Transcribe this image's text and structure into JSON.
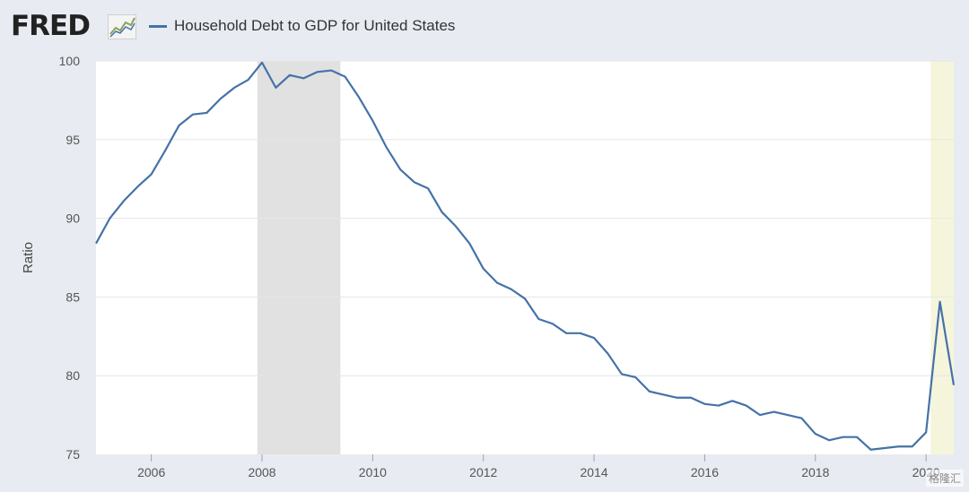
{
  "header": {
    "logo_text": "FRED",
    "logo_icon": "line-chart-icon"
  },
  "colors": {
    "series": "#4572a7",
    "recession": "#e1e1e1",
    "highlight": "#f5f5dc",
    "grid": "#e6e6e6",
    "plot_bg": "#ffffff"
  },
  "watermark": "格隆汇",
  "chart_data": {
    "type": "line",
    "title": "",
    "xlabel": "",
    "ylabel": "Ratio",
    "xlim": [
      "2005-01-01",
      "2020-07-01"
    ],
    "ylim": [
      75,
      100
    ],
    "x_ticks": [
      "2006",
      "2008",
      "2010",
      "2012",
      "2014",
      "2016",
      "2018",
      "2020"
    ],
    "y_ticks": [
      75,
      80,
      85,
      90,
      95,
      100
    ],
    "grid": true,
    "legend": "top-left",
    "shaded_periods": [
      {
        "start": "2007-12-01",
        "end": "2009-06-01",
        "kind": "recession"
      },
      {
        "start": "2020-02-01",
        "end": "2020-07-01",
        "kind": "highlight"
      }
    ],
    "series": [
      {
        "name": "Household Debt to GDP for United States",
        "x": [
          "2005-01-01",
          "2005-04-01",
          "2005-07-01",
          "2005-10-01",
          "2006-01-01",
          "2006-04-01",
          "2006-07-01",
          "2006-10-01",
          "2007-01-01",
          "2007-04-01",
          "2007-07-01",
          "2007-10-01",
          "2008-01-01",
          "2008-04-01",
          "2008-07-01",
          "2008-10-01",
          "2009-01-01",
          "2009-04-01",
          "2009-07-01",
          "2009-10-01",
          "2010-01-01",
          "2010-04-01",
          "2010-07-01",
          "2010-10-01",
          "2011-01-01",
          "2011-04-01",
          "2011-07-01",
          "2011-10-01",
          "2012-01-01",
          "2012-04-01",
          "2012-07-01",
          "2012-10-01",
          "2013-01-01",
          "2013-04-01",
          "2013-07-01",
          "2013-10-01",
          "2014-01-01",
          "2014-04-01",
          "2014-07-01",
          "2014-10-01",
          "2015-01-01",
          "2015-04-01",
          "2015-07-01",
          "2015-10-01",
          "2016-01-01",
          "2016-04-01",
          "2016-07-01",
          "2016-10-01",
          "2017-01-01",
          "2017-04-01",
          "2017-07-01",
          "2017-10-01",
          "2018-01-01",
          "2018-04-01",
          "2018-07-01",
          "2018-10-01",
          "2019-01-01",
          "2019-04-01",
          "2019-07-01",
          "2019-10-01",
          "2020-01-01",
          "2020-04-01",
          "2020-07-01"
        ],
        "values": [
          88.4,
          90.0,
          91.1,
          92.0,
          92.8,
          94.3,
          95.9,
          96.6,
          96.7,
          97.6,
          98.3,
          98.8,
          99.9,
          98.3,
          99.1,
          98.9,
          99.3,
          99.4,
          99.0,
          97.7,
          96.2,
          94.5,
          93.1,
          92.3,
          91.9,
          90.4,
          89.5,
          88.4,
          86.8,
          85.9,
          85.5,
          84.9,
          83.6,
          83.3,
          82.7,
          82.7,
          82.4,
          81.4,
          80.1,
          79.9,
          79.0,
          78.8,
          78.6,
          78.6,
          78.2,
          78.1,
          78.4,
          78.1,
          77.5,
          77.7,
          77.5,
          77.3,
          76.3,
          75.9,
          76.1,
          76.1,
          75.3,
          75.4,
          75.5,
          75.5,
          76.4,
          84.7,
          79.4
        ]
      }
    ]
  }
}
